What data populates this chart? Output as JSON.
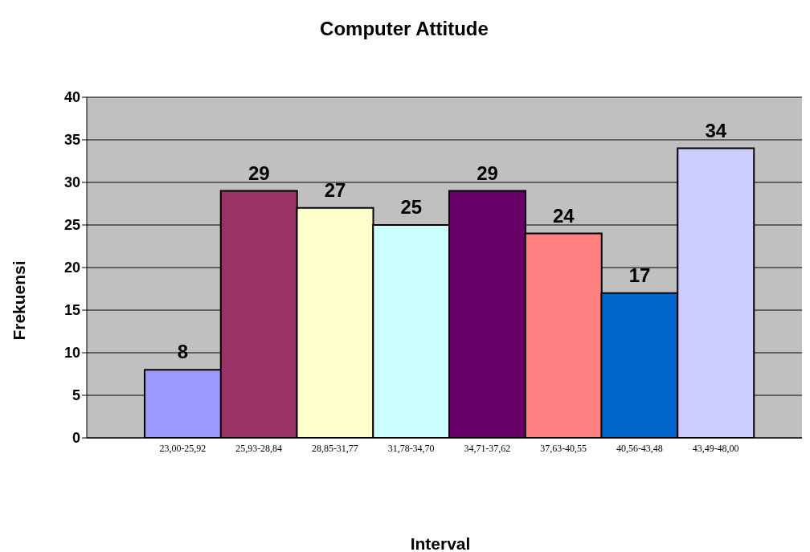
{
  "chart_data": {
    "type": "bar",
    "title": "Computer Attitude",
    "xlabel": "Interval",
    "ylabel": "Frekuensi",
    "categories": [
      "23,00-25,92",
      "25,93-28,84",
      "28,85-31,77",
      "31,78-34,70",
      "34,71-37,62",
      "37,63-40,55",
      "40,56-43,48",
      "43,49-48,00"
    ],
    "values": [
      8,
      29,
      27,
      25,
      29,
      24,
      17,
      34
    ],
    "colors": [
      "#9999ff",
      "#993366",
      "#ffffcc",
      "#ccffff",
      "#660066",
      "#ff8080",
      "#0066cc",
      "#ccccff"
    ],
    "ylim": [
      0,
      40
    ],
    "yticks": [
      0,
      5,
      10,
      15,
      20,
      25,
      30,
      35,
      40
    ],
    "grid": "y",
    "data_labels": true
  }
}
